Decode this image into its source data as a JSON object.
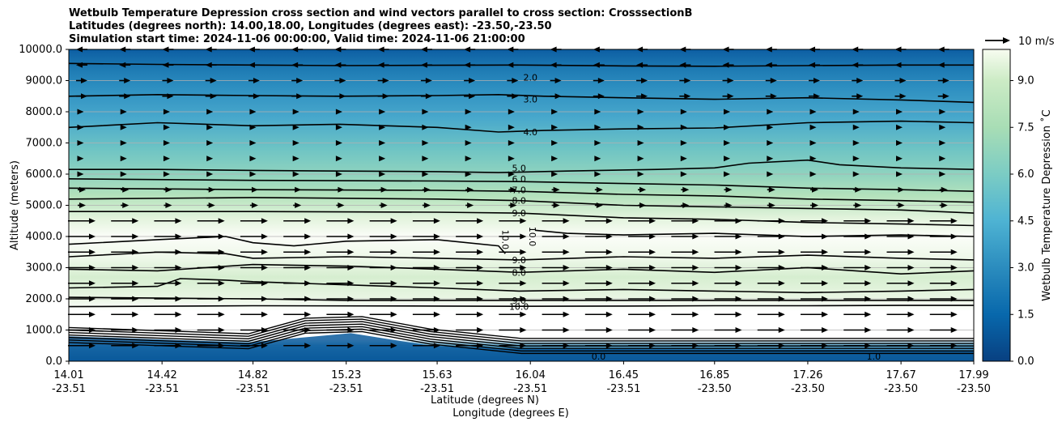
{
  "chart_data": {
    "type": "contour",
    "title_lines": [
      "Wetbulb Temperature Depression cross section and wind vectors parallel to cross section: CrosssectionB",
      "Latitudes (degrees north): 14.00,18.00, Longitudes (degrees east): -23.50,-23.50",
      "Simulation start time: 2024-11-06 00:00:00, Valid time: 2024-11-06 21:00:00"
    ],
    "ylabel": "Altitude (meters)",
    "xlabel_lines": [
      "Latitude (degrees N)",
      "Longitude (degrees E)"
    ],
    "ylim": [
      0,
      10000
    ],
    "xlim": [
      14.01,
      17.99
    ],
    "y_ticks": [
      "0.0",
      "1000.0",
      "2000.0",
      "3000.0",
      "4000.0",
      "5000.0",
      "6000.0",
      "7000.0",
      "8000.0",
      "9000.0",
      "10000.0"
    ],
    "x_ticks": [
      {
        "lat": "14.01",
        "lon": "-23.51"
      },
      {
        "lat": "14.42",
        "lon": "-23.51"
      },
      {
        "lat": "14.82",
        "lon": "-23.51"
      },
      {
        "lat": "15.23",
        "lon": "-23.51"
      },
      {
        "lat": "15.63",
        "lon": "-23.51"
      },
      {
        "lat": "16.04",
        "lon": "-23.51"
      },
      {
        "lat": "16.45",
        "lon": "-23.51"
      },
      {
        "lat": "16.85",
        "lon": "-23.50"
      },
      {
        "lat": "17.26",
        "lon": "-23.50"
      },
      {
        "lat": "17.67",
        "lon": "-23.50"
      },
      {
        "lat": "17.99",
        "lon": "-23.50"
      }
    ],
    "grid": "horizontal",
    "colorbar": {
      "label": "Wetbulb Temperature Depression ˚C",
      "range": [
        0,
        10
      ],
      "ticks": [
        "0.0",
        "1.5",
        "3.0",
        "4.5",
        "6.0",
        "7.5",
        "9.0"
      ],
      "colormap": "GnBu_r"
    },
    "quiver_key": {
      "label": "10 m/s"
    },
    "contour_labels": [
      {
        "value": "2.0",
        "x": 16.04,
        "y": 9100
      },
      {
        "value": "3.0",
        "x": 16.04,
        "y": 8400
      },
      {
        "value": "4.0",
        "x": 16.04,
        "y": 7350
      },
      {
        "value": "5.0",
        "x": 15.99,
        "y": 6200
      },
      {
        "value": "6.0",
        "x": 15.99,
        "y": 5850
      },
      {
        "value": "7.0",
        "x": 15.99,
        "y": 5500
      },
      {
        "value": "8.0",
        "x": 15.99,
        "y": 5150
      },
      {
        "value": "9.0",
        "x": 15.99,
        "y": 4750
      },
      {
        "value": "10.0",
        "x": 15.93,
        "y": 3900
      },
      {
        "value": "10.0",
        "x": 16.05,
        "y": 4000
      },
      {
        "value": "9.0",
        "x": 15.99,
        "y": 3250
      },
      {
        "value": "8.0",
        "x": 15.99,
        "y": 2850
      },
      {
        "value": "9.0",
        "x": 15.99,
        "y": 1950
      },
      {
        "value": "10.0",
        "x": 15.99,
        "y": 1750
      },
      {
        "value": "0.0",
        "x": 16.34,
        "y": 150
      },
      {
        "value": "1.0",
        "x": 17.55,
        "y": 150
      }
    ],
    "contour_levels": [
      {
        "value": 2,
        "points": [
          [
            14.01,
            9550
          ],
          [
            14.4,
            9520
          ],
          [
            14.82,
            9500
          ],
          [
            15.2,
            9480
          ],
          [
            15.63,
            9490
          ],
          [
            16.0,
            9500
          ],
          [
            16.45,
            9470
          ],
          [
            16.85,
            9460
          ],
          [
            17.26,
            9480
          ],
          [
            17.67,
            9500
          ],
          [
            17.99,
            9500
          ]
        ]
      },
      {
        "value": 3,
        "points": [
          [
            14.01,
            8500
          ],
          [
            14.4,
            8550
          ],
          [
            14.82,
            8520
          ],
          [
            15.2,
            8500
          ],
          [
            15.63,
            8520
          ],
          [
            15.9,
            8550
          ],
          [
            16.1,
            8500
          ],
          [
            16.45,
            8450
          ],
          [
            16.85,
            8400
          ],
          [
            17.26,
            8450
          ],
          [
            17.67,
            8380
          ],
          [
            17.99,
            8300
          ]
        ]
      },
      {
        "value": 4,
        "points": [
          [
            14.01,
            7500
          ],
          [
            14.4,
            7650
          ],
          [
            14.82,
            7550
          ],
          [
            15.2,
            7600
          ],
          [
            15.63,
            7500
          ],
          [
            15.9,
            7350
          ],
          [
            16.1,
            7400
          ],
          [
            16.45,
            7450
          ],
          [
            16.85,
            7480
          ],
          [
            17.26,
            7650
          ],
          [
            17.67,
            7700
          ],
          [
            17.99,
            7650
          ]
        ]
      },
      {
        "value": 5,
        "points": [
          [
            14.01,
            6150
          ],
          [
            14.4,
            6150
          ],
          [
            14.82,
            6120
          ],
          [
            15.2,
            6100
          ],
          [
            15.63,
            6080
          ],
          [
            15.9,
            6050
          ],
          [
            16.2,
            6100
          ],
          [
            16.6,
            6150
          ],
          [
            16.85,
            6200
          ],
          [
            17.0,
            6350
          ],
          [
            17.26,
            6450
          ],
          [
            17.4,
            6300
          ],
          [
            17.67,
            6200
          ],
          [
            17.99,
            6150
          ]
        ]
      },
      {
        "value": 6,
        "points": [
          [
            14.01,
            5850
          ],
          [
            14.82,
            5800
          ],
          [
            15.63,
            5780
          ],
          [
            15.99,
            5760
          ],
          [
            16.45,
            5700
          ],
          [
            16.85,
            5650
          ],
          [
            17.26,
            5550
          ],
          [
            17.67,
            5500
          ],
          [
            17.99,
            5450
          ]
        ]
      },
      {
        "value": 7,
        "points": [
          [
            14.01,
            5550
          ],
          [
            14.82,
            5500
          ],
          [
            15.63,
            5480
          ],
          [
            15.99,
            5450
          ],
          [
            16.45,
            5350
          ],
          [
            16.85,
            5300
          ],
          [
            17.26,
            5200
          ],
          [
            17.67,
            5150
          ],
          [
            17.99,
            5100
          ]
        ]
      },
      {
        "value": 8,
        "points": [
          [
            14.01,
            5200
          ],
          [
            14.82,
            5250
          ],
          [
            15.63,
            5200
          ],
          [
            15.99,
            5150
          ],
          [
            16.45,
            5000
          ],
          [
            16.85,
            4950
          ],
          [
            17.26,
            4900
          ],
          [
            17.67,
            4850
          ],
          [
            17.99,
            4750
          ]
        ]
      },
      {
        "value": 9,
        "points": [
          [
            14.01,
            4800
          ],
          [
            14.82,
            4800
          ],
          [
            15.63,
            4780
          ],
          [
            15.99,
            4750
          ],
          [
            16.45,
            4600
          ],
          [
            16.85,
            4550
          ],
          [
            17.26,
            4450
          ],
          [
            17.67,
            4400
          ],
          [
            17.99,
            4350
          ]
        ]
      },
      {
        "value": 10,
        "points": [
          [
            14.01,
            3750
          ],
          [
            14.4,
            3900
          ],
          [
            14.7,
            4000
          ],
          [
            14.82,
            3800
          ],
          [
            15.0,
            3700
          ],
          [
            15.23,
            3850
          ],
          [
            15.63,
            3900
          ],
          [
            15.9,
            3700
          ],
          [
            15.93,
            3450
          ]
        ]
      },
      {
        "value": 10,
        "points": [
          [
            16.06,
            4200
          ],
          [
            16.2,
            4100
          ],
          [
            16.45,
            4050
          ],
          [
            16.85,
            4100
          ],
          [
            17.26,
            4000
          ],
          [
            17.67,
            4050
          ],
          [
            17.99,
            4000
          ]
        ]
      },
      {
        "value": 9,
        "points": [
          [
            14.01,
            3350
          ],
          [
            14.4,
            3500
          ],
          [
            14.7,
            3450
          ],
          [
            14.82,
            3300
          ],
          [
            15.23,
            3350
          ],
          [
            15.63,
            3300
          ],
          [
            15.99,
            3250
          ],
          [
            16.45,
            3350
          ],
          [
            16.85,
            3300
          ],
          [
            17.26,
            3400
          ],
          [
            17.67,
            3300
          ],
          [
            17.99,
            3250
          ]
        ]
      },
      {
        "value": 8,
        "points": [
          [
            14.01,
            2950
          ],
          [
            14.4,
            2900
          ],
          [
            14.82,
            3100
          ],
          [
            15.23,
            3050
          ],
          [
            15.63,
            2950
          ],
          [
            15.99,
            2850
          ],
          [
            16.45,
            2950
          ],
          [
            16.85,
            2850
          ],
          [
            17.26,
            3000
          ],
          [
            17.67,
            2800
          ],
          [
            17.99,
            2900
          ]
        ]
      },
      {
        "value": 9,
        "points": [
          [
            14.01,
            2350
          ],
          [
            14.4,
            2400
          ],
          [
            14.5,
            2650
          ],
          [
            14.7,
            2600
          ],
          [
            14.82,
            2550
          ],
          [
            15.23,
            2450
          ],
          [
            15.63,
            2350
          ],
          [
            15.99,
            2250
          ],
          [
            16.45,
            2300
          ],
          [
            16.85,
            2250
          ],
          [
            17.26,
            2200
          ],
          [
            17.67,
            2250
          ],
          [
            17.99,
            2300
          ]
        ]
      },
      {
        "value": 9,
        "points": [
          [
            14.01,
            2050
          ],
          [
            14.82,
            2000
          ],
          [
            15.23,
            1950
          ],
          [
            15.63,
            1950
          ],
          [
            15.99,
            1950
          ],
          [
            16.45,
            1950
          ],
          [
            16.85,
            1950
          ],
          [
            17.26,
            1950
          ],
          [
            17.67,
            1950
          ],
          [
            17.99,
            1950
          ]
        ]
      },
      {
        "value": 10,
        "points": [
          [
            14.01,
            1750
          ],
          [
            14.82,
            1780
          ],
          [
            15.63,
            1770
          ],
          [
            15.99,
            1760
          ],
          [
            16.45,
            1770
          ],
          [
            16.85,
            1780
          ],
          [
            17.26,
            1780
          ],
          [
            17.67,
            1790
          ],
          [
            17.99,
            1790
          ]
        ]
      }
    ]
  }
}
